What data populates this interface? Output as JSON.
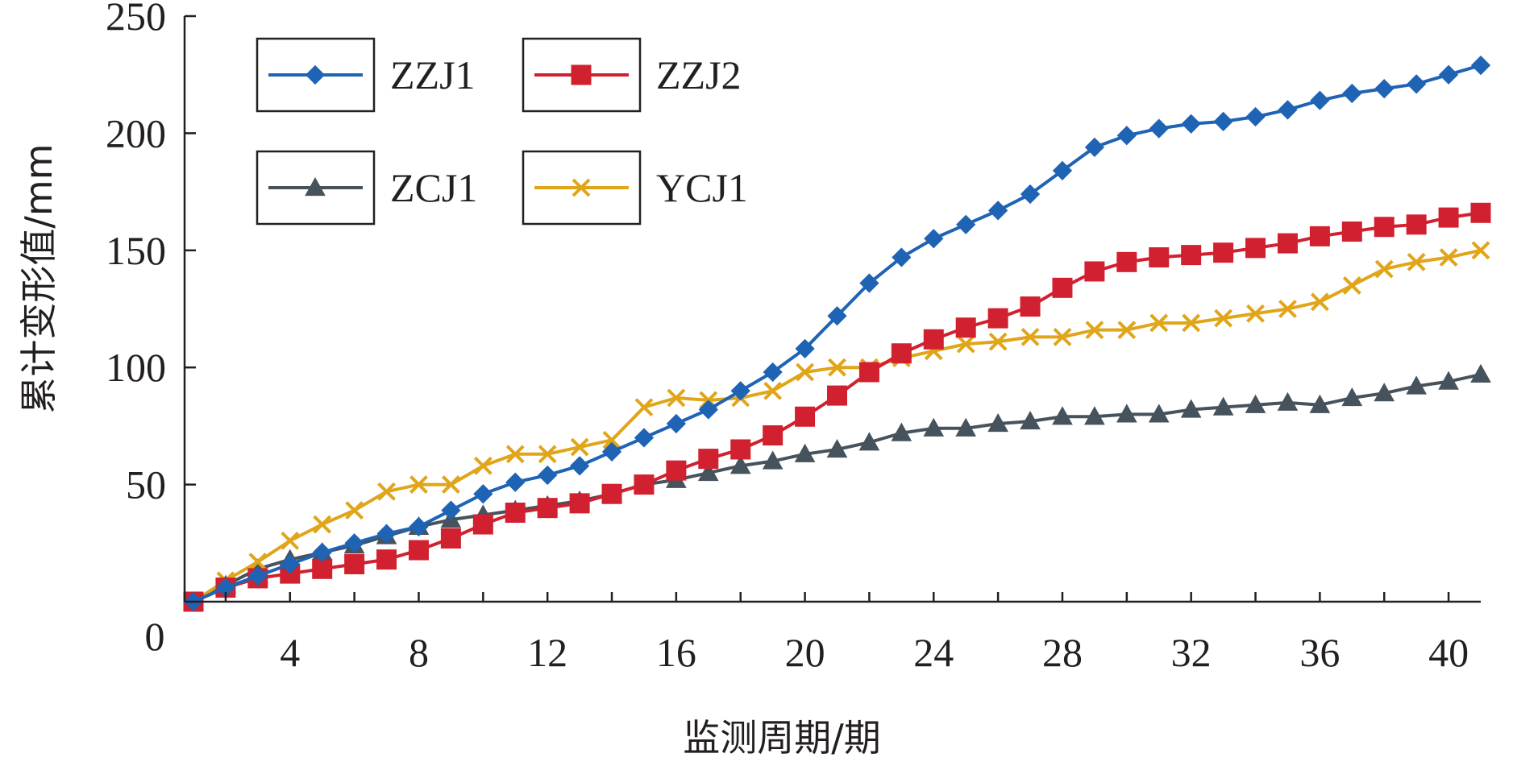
{
  "chart_data": {
    "type": "line",
    "xlabel": "监测周期/期",
    "ylabel": "累计变形值/mm",
    "xlim": [
      0,
      41
    ],
    "ylim": [
      0,
      250
    ],
    "x_ticks": [
      4,
      8,
      12,
      16,
      20,
      24,
      28,
      32,
      36,
      40
    ],
    "y_ticks": [
      50,
      100,
      150,
      200,
      250
    ],
    "origin_label": "0",
    "grid": false,
    "legend_position": "top-left",
    "x": [
      1,
      2,
      3,
      4,
      5,
      6,
      7,
      8,
      9,
      10,
      11,
      12,
      13,
      14,
      15,
      16,
      17,
      18,
      19,
      20,
      21,
      22,
      23,
      24,
      25,
      26,
      27,
      28,
      29,
      30,
      31,
      32,
      33,
      34,
      35,
      36,
      37,
      38,
      39,
      40,
      41
    ],
    "series": [
      {
        "name": "ZZJ1",
        "color": "#1f63b4",
        "marker": "diamond",
        "values": [
          0,
          6,
          11,
          16,
          21,
          25,
          29,
          32,
          39,
          46,
          51,
          54,
          58,
          64,
          70,
          76,
          82,
          90,
          98,
          108,
          122,
          136,
          147,
          155,
          161,
          167,
          174,
          184,
          194,
          199,
          202,
          204,
          205,
          207,
          210,
          214,
          217,
          219,
          221,
          225,
          229
        ]
      },
      {
        "name": "ZZJ2",
        "color": "#d1202f",
        "marker": "square",
        "values": [
          0,
          6,
          10,
          12,
          14,
          16,
          18,
          22,
          27,
          33,
          38,
          40,
          42,
          46,
          50,
          56,
          61,
          65,
          71,
          79,
          88,
          98,
          106,
          112,
          117,
          121,
          126,
          134,
          141,
          145,
          147,
          148,
          149,
          151,
          153,
          156,
          158,
          160,
          161,
          164,
          166
        ]
      },
      {
        "name": "ZCJ1",
        "color": "#46535c",
        "marker": "triangle",
        "values": [
          0,
          7,
          14,
          18,
          21,
          24,
          28,
          32,
          35,
          37,
          39,
          41,
          43,
          46,
          50,
          52,
          55,
          58,
          60,
          63,
          65,
          68,
          72,
          74,
          74,
          76,
          77,
          79,
          79,
          80,
          80,
          82,
          83,
          84,
          85,
          84,
          87,
          89,
          92,
          94,
          97
        ]
      },
      {
        "name": "YCJ1",
        "color": "#e0a519",
        "marker": "x",
        "values": [
          0,
          9,
          17,
          26,
          33,
          39,
          47,
          50,
          50,
          58,
          63,
          63,
          66,
          69,
          83,
          87,
          86,
          87,
          90,
          98,
          100,
          100,
          104,
          107,
          110,
          111,
          113,
          113,
          116,
          116,
          119,
          119,
          121,
          123,
          125,
          128,
          135,
          142,
          145,
          147,
          150
        ]
      }
    ]
  }
}
